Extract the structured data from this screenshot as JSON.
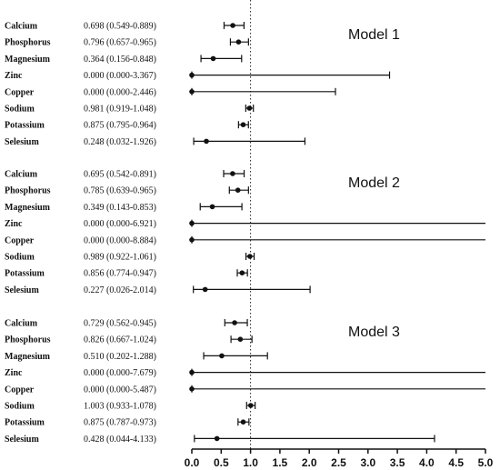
{
  "chart_data": {
    "type": "forest",
    "xlim": [
      0,
      5
    ],
    "xticks": [
      "0.0",
      "0.5",
      "1.0",
      "1.5",
      "2.0",
      "2.5",
      "3.0",
      "3.5",
      "4.0",
      "4.5",
      "5.0"
    ],
    "reference_line": 1.0,
    "models": [
      {
        "name": "Model 1",
        "rows": [
          {
            "label": "Calcium",
            "text": "0.698 (0.549-0.889)",
            "or": 0.698,
            "lo": 0.549,
            "hi": 0.889
          },
          {
            "label": "Phosphorus",
            "text": "0.796 (0.657-0.965)",
            "or": 0.796,
            "lo": 0.657,
            "hi": 0.965
          },
          {
            "label": "Magnesium",
            "text": "0.364 (0.156-0.848)",
            "or": 0.364,
            "lo": 0.156,
            "hi": 0.848
          },
          {
            "label": "Zinc",
            "text": "0.000 (0.000-3.367)",
            "or": 0.0,
            "lo": 0.0,
            "hi": 3.367
          },
          {
            "label": "Copper",
            "text": "0.000 (0.000-2.446)",
            "or": 0.0,
            "lo": 0.0,
            "hi": 2.446
          },
          {
            "label": "Sodium",
            "text": "0.981 (0.919-1.048)",
            "or": 0.981,
            "lo": 0.919,
            "hi": 1.048
          },
          {
            "label": "Potassium",
            "text": "0.875 (0.795-0.964)",
            "or": 0.875,
            "lo": 0.795,
            "hi": 0.964
          },
          {
            "label": "Selesium",
            "text": "0.248 (0.032-1.926)",
            "or": 0.248,
            "lo": 0.032,
            "hi": 1.926
          }
        ]
      },
      {
        "name": "Model 2",
        "rows": [
          {
            "label": "Calcium",
            "text": "0.695 (0.542-0.891)",
            "or": 0.695,
            "lo": 0.542,
            "hi": 0.891
          },
          {
            "label": "Phosphorus",
            "text": "0.785 (0.639-0.965)",
            "or": 0.785,
            "lo": 0.639,
            "hi": 0.965
          },
          {
            "label": "Magnesium",
            "text": "0.349 (0.143-0.853)",
            "or": 0.349,
            "lo": 0.143,
            "hi": 0.853
          },
          {
            "label": "Zinc",
            "text": "0.000 (0.000-6.921)",
            "or": 0.0,
            "lo": 0.0,
            "hi": 6.921
          },
          {
            "label": "Copper",
            "text": "0.000 (0.000-8.884)",
            "or": 0.0,
            "lo": 0.0,
            "hi": 8.884
          },
          {
            "label": "Sodium",
            "text": "0.989 (0.922-1.061)",
            "or": 0.989,
            "lo": 0.922,
            "hi": 1.061
          },
          {
            "label": "Potassium",
            "text": "0.856 (0.774-0.947)",
            "or": 0.856,
            "lo": 0.774,
            "hi": 0.947
          },
          {
            "label": "Selesium",
            "text": "0.227 (0.026-2.014)",
            "or": 0.227,
            "lo": 0.026,
            "hi": 2.014
          }
        ]
      },
      {
        "name": "Model 3",
        "rows": [
          {
            "label": "Calcium",
            "text": "0.729 (0.562-0.945)",
            "or": 0.729,
            "lo": 0.562,
            "hi": 0.945
          },
          {
            "label": "Phosphorus",
            "text": "0.826 (0.667-1.024)",
            "or": 0.826,
            "lo": 0.667,
            "hi": 1.024
          },
          {
            "label": "Magnesium",
            "text": "0.510 (0.202-1.288)",
            "or": 0.51,
            "lo": 0.202,
            "hi": 1.288
          },
          {
            "label": "Zinc",
            "text": "0.000 (0.000-7.679)",
            "or": 0.0,
            "lo": 0.0,
            "hi": 7.679
          },
          {
            "label": "Copper",
            "text": "0.000 (0.000-5.487)",
            "or": 0.0,
            "lo": 0.0,
            "hi": 5.487
          },
          {
            "label": "Sodium",
            "text": "1.003 (0.933-1.078)",
            "or": 1.003,
            "lo": 0.933,
            "hi": 1.078
          },
          {
            "label": "Potassium",
            "text": "0.875 (0.787-0.973)",
            "or": 0.875,
            "lo": 0.787,
            "hi": 0.973
          },
          {
            "label": "Selesium",
            "text": "0.428 (0.044-4.133)",
            "or": 0.428,
            "lo": 0.044,
            "hi": 4.133
          }
        ]
      }
    ]
  }
}
